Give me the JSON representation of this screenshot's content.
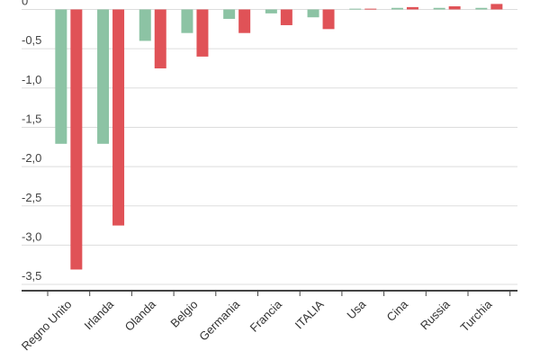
{
  "chart_data": {
    "type": "bar",
    "categories": [
      "Regno Unito",
      "Irlanda",
      "Olanda",
      "Belgio",
      "Germania",
      "Francia",
      "ITALIA",
      "Usa",
      "Cina",
      "Russia",
      "Turchia"
    ],
    "series": [
      {
        "color": "#8cc3a4",
        "values": [
          -1.71,
          -1.71,
          -0.4,
          -0.3,
          -0.12,
          -0.05,
          -0.1,
          0.01,
          0.02,
          0.02,
          0.02
        ]
      },
      {
        "color": "#e05257",
        "values": [
          -3.31,
          -2.75,
          -0.75,
          -0.6,
          -0.3,
          -0.2,
          -0.25,
          0.01,
          0.03,
          0.04,
          0.07
        ]
      }
    ],
    "yticks": [
      0,
      -0.5,
      -1,
      -1.5,
      -2,
      -2.5,
      -3,
      -3.5
    ],
    "ytick_labels": [
      "0",
      "-0,5",
      "-1,0",
      "-1,5",
      "-2,0",
      "-2,5",
      "-3,0",
      "-3,5"
    ],
    "ylim": [
      -3.5,
      0.1
    ],
    "grid": true,
    "legend": "none",
    "title": "",
    "xlabel": "",
    "ylabel": ""
  }
}
